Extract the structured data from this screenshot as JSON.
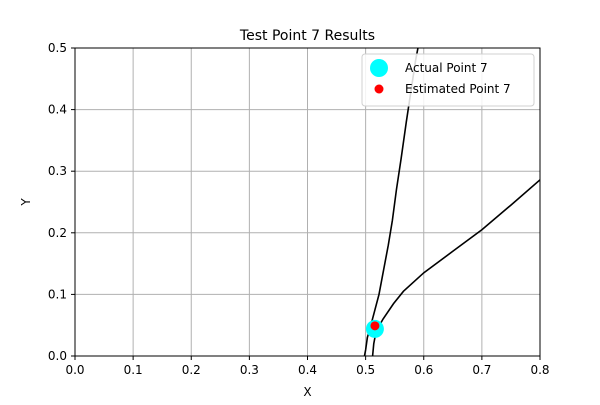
{
  "chart_data": {
    "type": "scatter",
    "title": "Test Point 7 Results",
    "xlabel": "X",
    "ylabel": "Y",
    "xlim": [
      0.0,
      0.8
    ],
    "ylim": [
      0.0,
      0.5
    ],
    "xticks": [
      "0.0",
      "0.1",
      "0.2",
      "0.3",
      "0.4",
      "0.5",
      "0.6",
      "0.7",
      "0.8"
    ],
    "yticks": [
      "0.0",
      "0.1",
      "0.2",
      "0.3",
      "0.4",
      "0.5"
    ],
    "grid": true,
    "legend_position": "top-right",
    "curves": [
      {
        "color": "#000000",
        "points": [
          [
            0.498,
            0.0
          ],
          [
            0.5,
            0.01
          ],
          [
            0.503,
            0.03
          ],
          [
            0.509,
            0.05
          ],
          [
            0.516,
            0.075
          ],
          [
            0.523,
            0.1
          ],
          [
            0.531,
            0.14
          ],
          [
            0.539,
            0.18
          ],
          [
            0.546,
            0.22
          ],
          [
            0.553,
            0.27
          ],
          [
            0.561,
            0.32
          ],
          [
            0.57,
            0.38
          ],
          [
            0.578,
            0.43
          ],
          [
            0.586,
            0.48
          ],
          [
            0.59,
            0.5
          ]
        ]
      },
      {
        "color": "#000000",
        "points": [
          [
            0.512,
            0.0
          ],
          [
            0.514,
            0.02
          ],
          [
            0.518,
            0.04
          ],
          [
            0.53,
            0.06
          ],
          [
            0.548,
            0.085
          ],
          [
            0.565,
            0.105
          ],
          [
            0.6,
            0.135
          ],
          [
            0.65,
            0.17
          ],
          [
            0.7,
            0.205
          ],
          [
            0.75,
            0.245
          ],
          [
            0.8,
            0.286
          ]
        ]
      }
    ],
    "series": [
      {
        "name": "Actual Point 7",
        "color": "#00ffff",
        "x": [
          0.516
        ],
        "y": [
          0.044
        ],
        "marker_size": "large"
      },
      {
        "name": "Estimated Point 7",
        "color": "#ff0000",
        "x": [
          0.516
        ],
        "y": [
          0.049
        ],
        "marker_size": "small"
      }
    ]
  }
}
